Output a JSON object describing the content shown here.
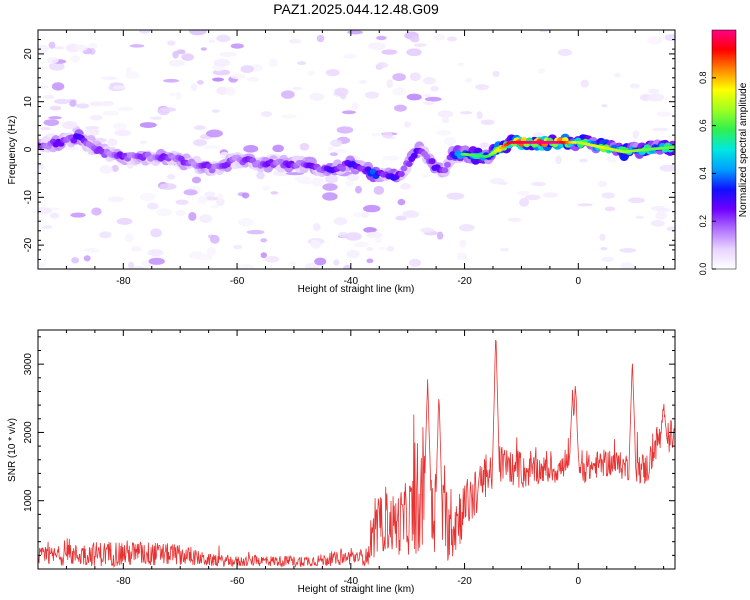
{
  "title": "PAZ1.2025.044.12.48.G09",
  "colors": {
    "snr_line": "#e83232",
    "cmap": [
      "#ffffff",
      "#e8d4ff",
      "#b070ff",
      "#7000ff",
      "#1010ff",
      "#00a0ff",
      "#00e8e0",
      "#30f050",
      "#a0ff20",
      "#ffff00",
      "#ff8800",
      "#ff0000",
      "#ff0088"
    ]
  },
  "chart_data": [
    {
      "type": "heatmap",
      "name": "spectrogram",
      "xlabel": "Height of straight line (km)",
      "ylabel": "Frequency (Hz)",
      "xlim": [
        -95,
        17
      ],
      "ylim": [
        -25,
        25
      ],
      "xticks": [
        "-80",
        "-60",
        "-40",
        "-20",
        "0"
      ],
      "xtick_values": [
        -80,
        -60,
        -40,
        -20,
        0
      ],
      "yticks": [
        "20",
        "10",
        "0",
        "-10",
        "-20"
      ],
      "ytick_values": [
        20,
        10,
        0,
        -10,
        -20
      ],
      "colorbar": {
        "label": "Normalized spectral amplitude",
        "range": [
          0,
          1
        ],
        "ticks": [
          "0.0",
          "0.2",
          "0.4",
          "0.6",
          "0.8"
        ],
        "tick_values": [
          0.0,
          0.2,
          0.4,
          0.6,
          0.8
        ]
      },
      "ridge": {
        "height_km": [
          -93,
          -88,
          -84,
          -80,
          -76,
          -72,
          -68,
          -64,
          -60,
          -56,
          -52,
          -48,
          -44,
          -40,
          -36,
          -32,
          -28,
          -24,
          -22,
          -20,
          -16,
          -12,
          -8,
          -4,
          0,
          4,
          8,
          12,
          17
        ],
        "frequency_hz": [
          1,
          2.5,
          -0.5,
          -1.5,
          -1.5,
          -1.5,
          -3,
          -4,
          -2,
          -3,
          -3,
          -3,
          -4.5,
          -3,
          -5,
          -6,
          0,
          -5,
          -1,
          -1,
          -1.5,
          1.5,
          1.5,
          1.5,
          1.5,
          0.5,
          -0.5,
          0,
          0.5
        ],
        "amplitude": [
          0.25,
          0.3,
          0.22,
          0.25,
          0.22,
          0.25,
          0.22,
          0.25,
          0.22,
          0.25,
          0.25,
          0.25,
          0.3,
          0.3,
          0.38,
          0.3,
          0.28,
          0.28,
          0.32,
          0.55,
          0.5,
          0.85,
          0.9,
          0.95,
          0.6,
          0.65,
          0.6,
          0.55,
          0.55
        ]
      }
    },
    {
      "type": "line",
      "name": "snr",
      "xlabel": "Height of straight line (km)",
      "ylabel": "SNR (10 * v/v)",
      "xlim": [
        -95,
        17
      ],
      "ylim": [
        0,
        3500
      ],
      "xticks": [
        "-80",
        "-60",
        "-40",
        "-20",
        "0"
      ],
      "xtick_values": [
        -80,
        -60,
        -40,
        -20,
        0
      ],
      "yticks": [
        "1000",
        "2000",
        "3000"
      ],
      "ytick_values": [
        1000,
        2000,
        3000
      ],
      "envelope": {
        "x": [
          -95,
          -90,
          -85,
          -80,
          -75,
          -70,
          -65,
          -60,
          -55,
          -50,
          -45,
          -40,
          -37,
          -36,
          -34,
          -32,
          -30,
          -28,
          -26,
          -24,
          -22,
          -20,
          -18,
          -16,
          -14,
          -12,
          -10,
          -8,
          -6,
          -4,
          -2,
          0,
          2,
          4,
          6,
          8,
          10,
          12,
          14,
          17
        ],
        "y_base": [
          180,
          200,
          220,
          230,
          220,
          210,
          130,
          110,
          120,
          110,
          130,
          170,
          180,
          500,
          700,
          650,
          750,
          900,
          1100,
          700,
          650,
          900,
          1100,
          1350,
          1550,
          1500,
          1400,
          1450,
          1450,
          1450,
          1500,
          1450,
          1480,
          1550,
          1550,
          1500,
          1500,
          1450,
          1900,
          1950
        ],
        "y_amp": [
          130,
          150,
          180,
          200,
          180,
          150,
          90,
          80,
          80,
          80,
          90,
          110,
          130,
          350,
          450,
          450,
          550,
          700,
          800,
          600,
          550,
          400,
          350,
          350,
          300,
          250,
          250,
          220,
          200,
          200,
          200,
          220,
          200,
          200,
          200,
          200,
          220,
          250,
          250,
          250
        ],
        "peaks": [
          [
            -26.5,
            2780
          ],
          [
            -24.5,
            2600
          ],
          [
            -14.5,
            3450
          ],
          [
            -1,
            2600
          ],
          [
            -0.5,
            2750
          ],
          [
            9.5,
            3050
          ],
          [
            15,
            2400
          ]
        ]
      }
    }
  ]
}
